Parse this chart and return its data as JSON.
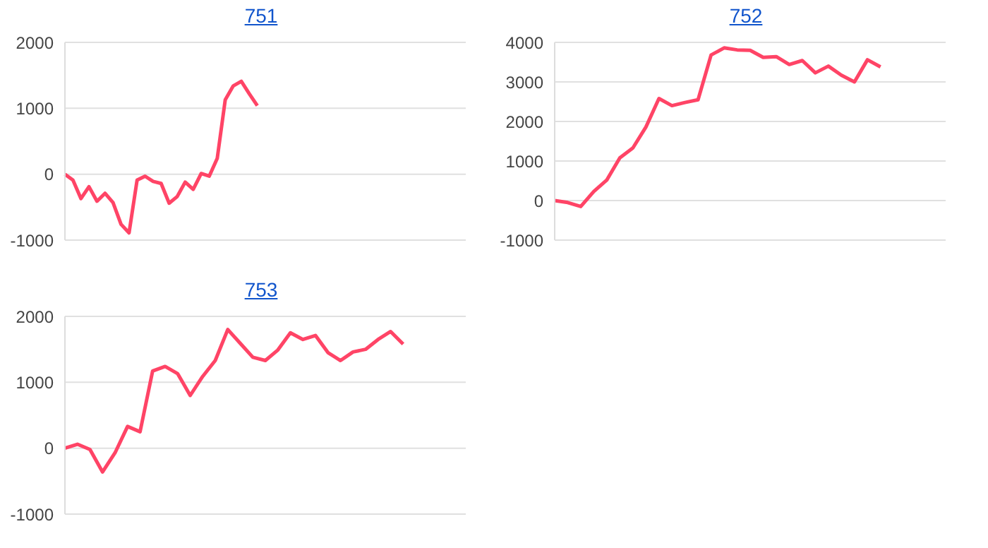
{
  "chart_data": [
    {
      "type": "line",
      "title": "751",
      "categories": [
        null,
        null,
        null,
        null,
        null,
        null,
        null,
        null,
        null,
        null,
        null,
        null,
        null,
        null,
        null,
        null,
        null,
        null,
        null,
        null,
        null,
        null,
        null,
        null,
        null,
        null,
        null,
        null,
        null,
        null,
        null,
        null,
        null,
        null,
        null,
        null,
        null,
        null,
        null,
        null,
        null,
        null,
        null,
        null,
        null,
        null,
        null,
        null,
        null,
        null,
        null
      ],
      "series": [
        {
          "color": "#ff4466",
          "values": [
            0,
            -90,
            -370,
            -190,
            -410,
            -290,
            -430,
            -760,
            -890,
            -90,
            -30,
            -110,
            -140,
            -440,
            -340,
            -120,
            -230,
            10,
            -30,
            240,
            1130,
            1340,
            1410,
            1220,
            1040,
            null,
            null,
            null,
            null,
            null,
            null,
            null,
            null,
            null,
            null,
            null,
            null,
            null,
            null,
            null,
            null,
            null,
            null,
            null,
            null,
            null,
            null,
            null,
            null,
            null,
            null
          ]
        }
      ],
      "ylim": [
        -1000,
        2000
      ],
      "yticks": [
        -1000,
        0,
        1000,
        2000
      ],
      "grid": "y",
      "legend": false,
      "tick_labels": "y",
      "marker": "none",
      "line_style": "solid"
    },
    {
      "type": "line",
      "title": "752",
      "categories": [
        null,
        null,
        null,
        null,
        null,
        null,
        null,
        null,
        null,
        null,
        null,
        null,
        null,
        null,
        null,
        null,
        null,
        null,
        null,
        null,
        null,
        null,
        null,
        null,
        null,
        null,
        null,
        null,
        null,
        null,
        null
      ],
      "series": [
        {
          "color": "#ff4466",
          "values": [
            0,
            -50,
            -150,
            230,
            520,
            1080,
            1330,
            1860,
            2580,
            2400,
            2480,
            2550,
            3680,
            3860,
            3810,
            3800,
            3620,
            3640,
            3440,
            3540,
            3230,
            3400,
            3170,
            3000,
            3560,
            3380,
            null,
            null,
            null,
            null,
            null
          ]
        }
      ],
      "ylim": [
        -1000,
        4000
      ],
      "yticks": [
        -1000,
        0,
        1000,
        2000,
        3000,
        4000
      ],
      "grid": "y",
      "legend": false,
      "tick_labels": "y",
      "marker": "none",
      "line_style": "solid"
    },
    {
      "type": "line",
      "title": "753",
      "categories": [
        null,
        null,
        null,
        null,
        null,
        null,
        null,
        null,
        null,
        null,
        null,
        null,
        null,
        null,
        null,
        null,
        null,
        null,
        null,
        null,
        null,
        null,
        null,
        null,
        null,
        null,
        null,
        null,
        null,
        null,
        null,
        null,
        null
      ],
      "series": [
        {
          "color": "#ff4466",
          "values": [
            0,
            60,
            -20,
            -360,
            -70,
            330,
            250,
            1170,
            1240,
            1130,
            800,
            1090,
            1330,
            1800,
            1590,
            1380,
            1330,
            1490,
            1750,
            1650,
            1710,
            1450,
            1330,
            1460,
            1500,
            1650,
            1770,
            1580,
            null,
            null,
            null,
            null,
            null
          ]
        }
      ],
      "ylim": [
        -1000,
        2000
      ],
      "yticks": [
        -1000,
        0,
        1000,
        2000
      ],
      "grid": "y",
      "legend": false,
      "tick_labels": "y",
      "marker": "none",
      "line_style": "solid"
    }
  ]
}
